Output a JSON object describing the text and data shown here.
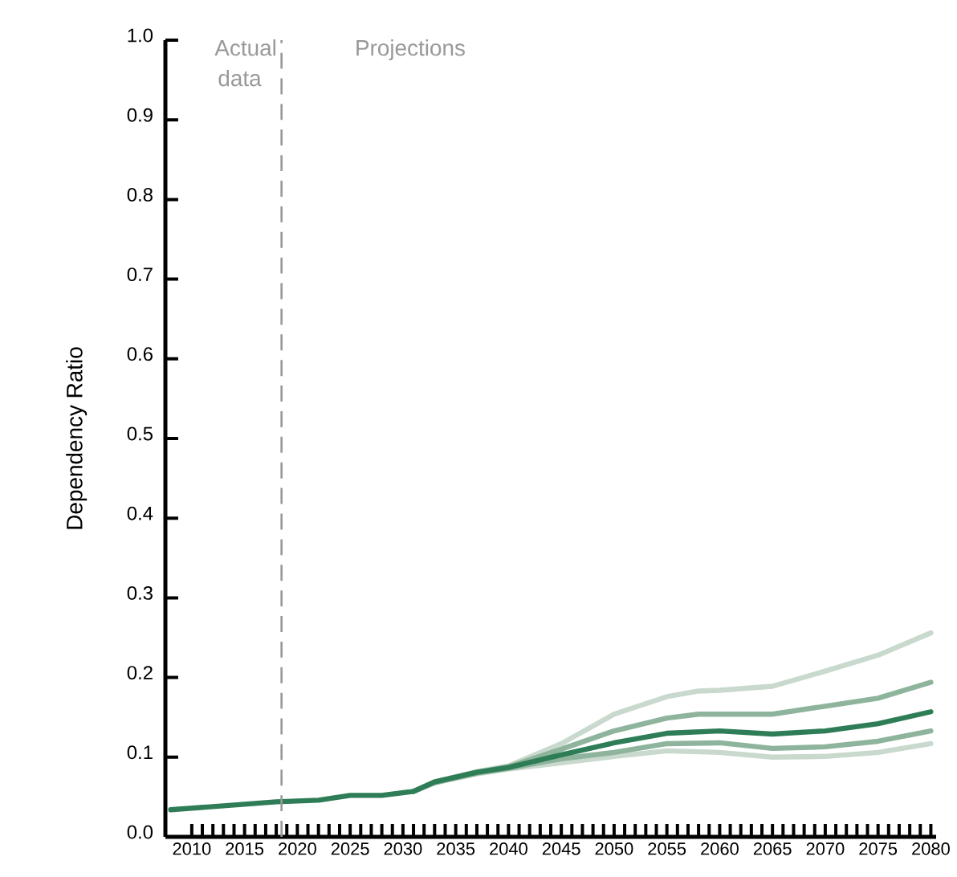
{
  "chart_data": {
    "type": "line",
    "ylabel": "Dependency Ratio",
    "annotations": [
      "Actual data",
      "Projections"
    ],
    "xlim": [
      2007.5,
      2080.5
    ],
    "ylim": [
      0,
      1
    ],
    "xticks": [
      2010,
      2015,
      2020,
      2025,
      2030,
      2035,
      2040,
      2045,
      2050,
      2055,
      2060,
      2065,
      2070,
      2075,
      2080
    ],
    "yticks": [
      {
        "value": 0,
        "label": "0.0"
      },
      {
        "value": 0.1,
        "label": "0.1"
      },
      {
        "value": 0.2,
        "label": "0.2"
      },
      {
        "value": 0.3,
        "label": "0.3"
      },
      {
        "value": 0.4,
        "label": "0.4"
      },
      {
        "value": 0.5,
        "label": "0.5"
      },
      {
        "value": 0.6,
        "label": "0.6"
      },
      {
        "value": 0.7,
        "label": "0.7"
      },
      {
        "value": 0.8,
        "label": "0.8"
      },
      {
        "value": 0.9,
        "label": "0.9"
      },
      {
        "value": 1.0,
        "label": "1.0"
      }
    ],
    "marker": "none",
    "line_style": "solid",
    "ref_lines": [
      {
        "axis": "x",
        "value": 2018.5,
        "color": "#999999",
        "line_style": "dashed"
      }
    ],
    "series": [
      {
        "color": "#c9d9cd",
        "x": [
          2031,
          2033,
          2037,
          2040,
          2045,
          2050,
          2055,
          2058,
          2060,
          2065,
          2070,
          2075,
          2080
        ],
        "values": [
          0.057,
          0.069,
          0.082,
          0.089,
          0.117,
          0.154,
          0.176,
          0.183,
          0.184,
          0.189,
          0.208,
          0.228,
          0.256
        ]
      },
      {
        "color": "#c9d9cd",
        "x": [
          2031,
          2033,
          2037,
          2040,
          2045,
          2050,
          2055,
          2060,
          2065,
          2070,
          2075,
          2080
        ],
        "values": [
          0.057,
          0.068,
          0.079,
          0.085,
          0.093,
          0.101,
          0.108,
          0.106,
          0.1,
          0.101,
          0.106,
          0.117
        ]
      },
      {
        "color": "#8fb49d",
        "x": [
          2031,
          2033,
          2037,
          2040,
          2045,
          2050,
          2055,
          2058,
          2060,
          2065,
          2070,
          2075,
          2080
        ],
        "values": [
          0.057,
          0.069,
          0.081,
          0.088,
          0.11,
          0.133,
          0.149,
          0.154,
          0.154,
          0.154,
          0.164,
          0.174,
          0.194
        ]
      },
      {
        "color": "#8fb49d",
        "x": [
          2031,
          2033,
          2037,
          2040,
          2045,
          2050,
          2055,
          2060,
          2065,
          2070,
          2075,
          2080
        ],
        "values": [
          0.057,
          0.068,
          0.08,
          0.086,
          0.098,
          0.106,
          0.117,
          0.118,
          0.111,
          0.113,
          0.12,
          0.133
        ]
      },
      {
        "color": "#2e7d57",
        "x": [
          2008,
          2012,
          2015,
          2018,
          2022,
          2025,
          2028,
          2031,
          2033,
          2037,
          2040,
          2045,
          2050,
          2055,
          2060,
          2065,
          2070,
          2075,
          2080
        ],
        "values": [
          0.034,
          0.038,
          0.041,
          0.044,
          0.046,
          0.052,
          0.052,
          0.057,
          0.069,
          0.081,
          0.087,
          0.103,
          0.118,
          0.13,
          0.133,
          0.129,
          0.133,
          0.142,
          0.157
        ]
      }
    ]
  }
}
